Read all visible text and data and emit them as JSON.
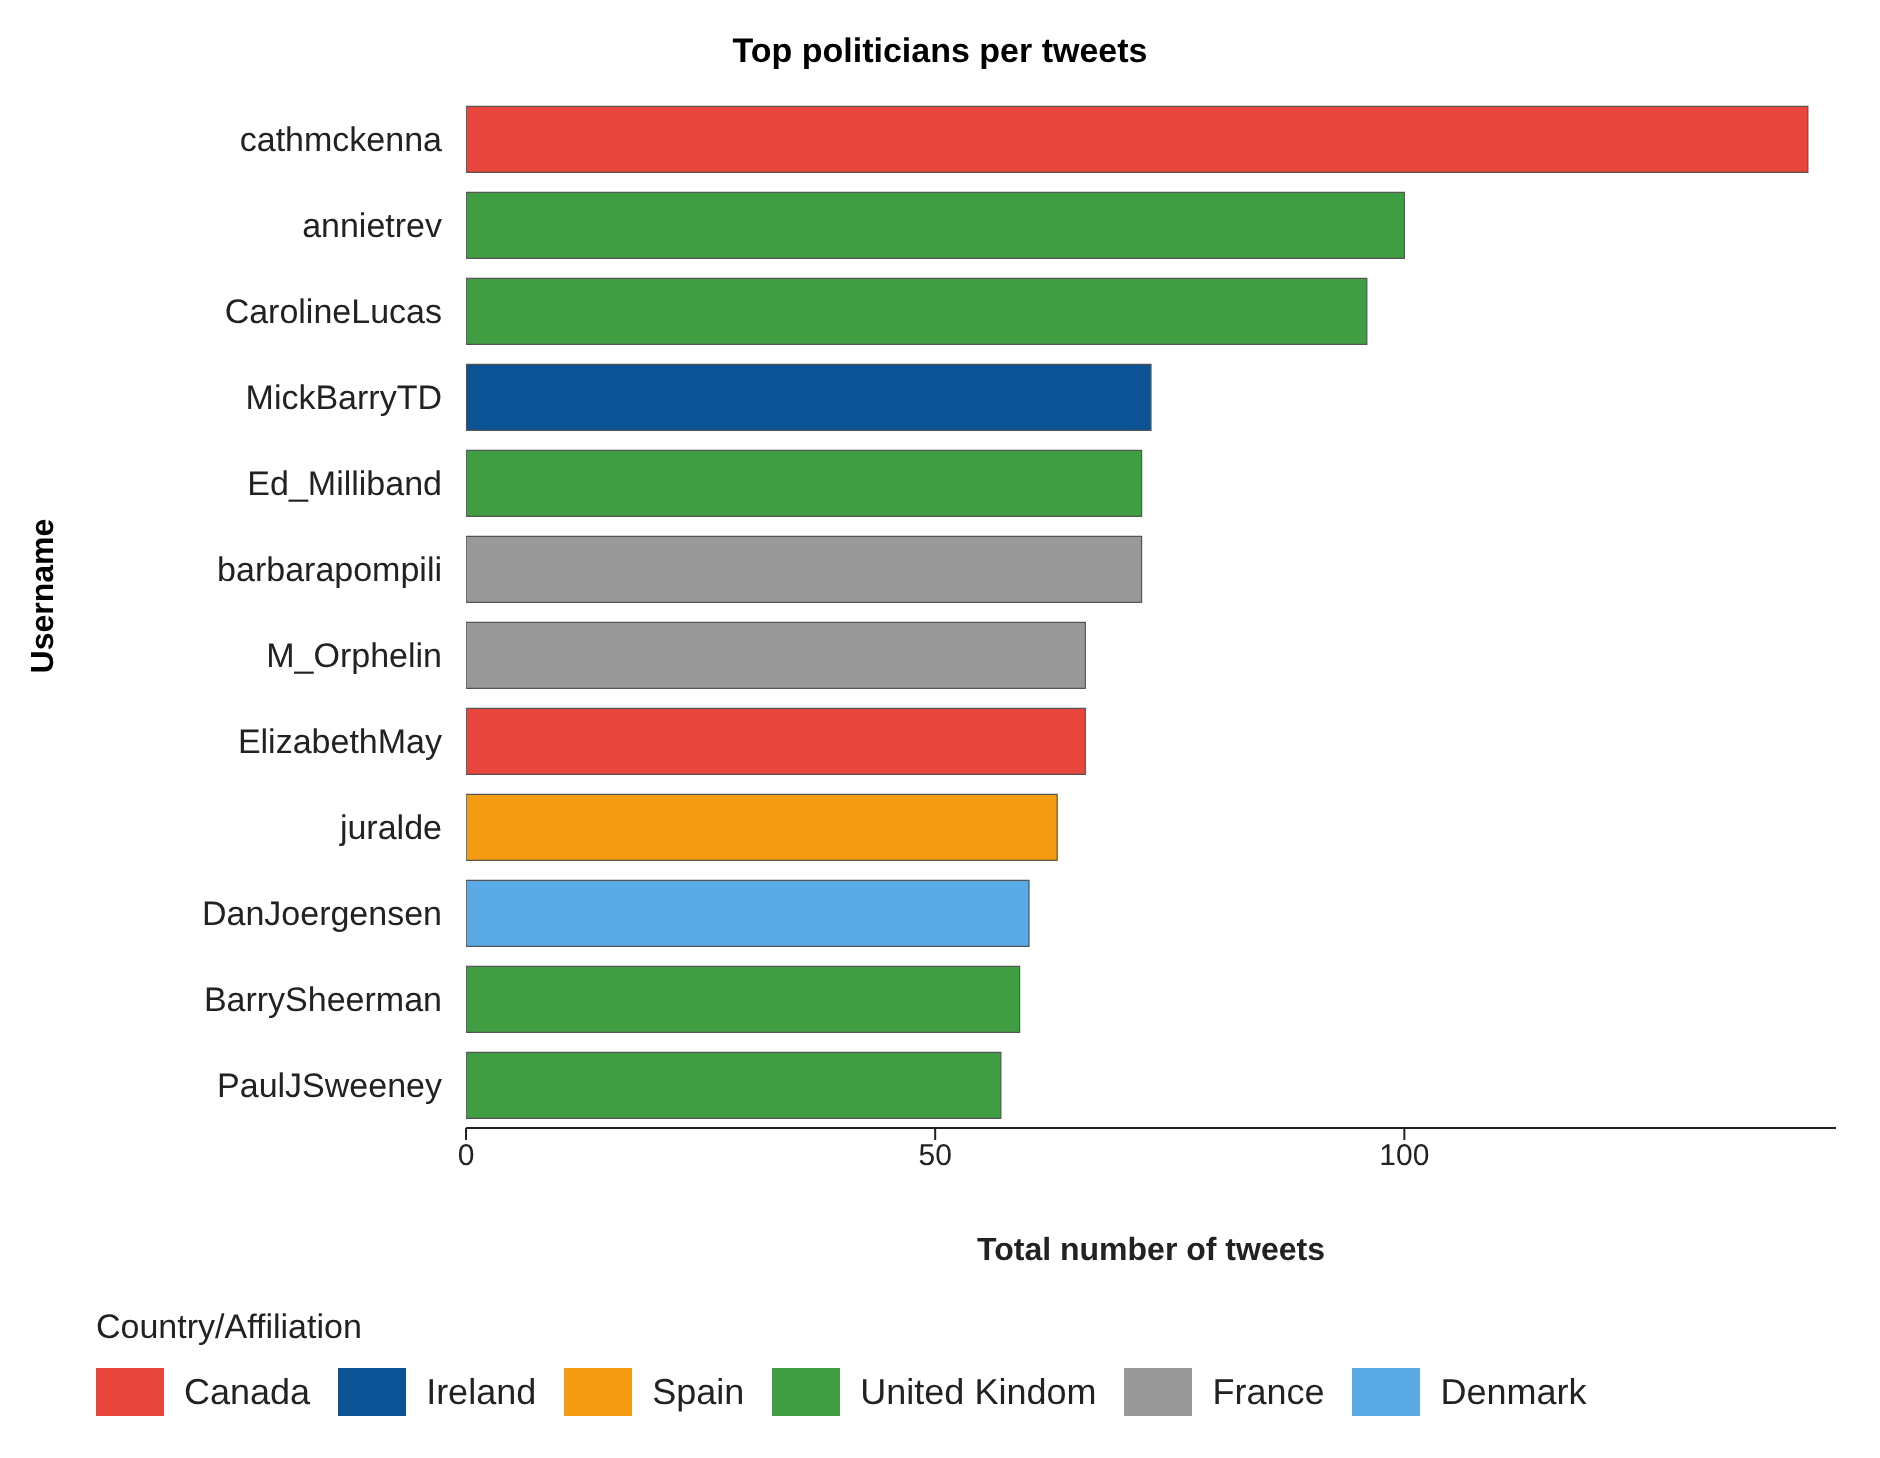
{
  "chart_data": {
    "type": "bar",
    "orientation": "horizontal",
    "stacked": true,
    "title": "Top politicians per tweets",
    "xlabel": "Total number of tweets",
    "ylabel": "Username",
    "legend_title": "Country/Affiliation",
    "legend": "bottom",
    "grid": false,
    "categories": [
      "cathmckenna",
      "annietrev",
      "CarolineLucas",
      "MickBarryTD",
      "Ed_Milliband",
      "barbarapompili",
      "M_Orphelin",
      "ElizabethMay",
      "juralde",
      "DanJoergensen",
      "BarrySheerman",
      "PaulJSweeney"
    ],
    "xlim": [
      0,
      146
    ],
    "xticks": [
      0,
      50,
      100
    ],
    "series": [
      {
        "name": "Canada",
        "color": "#e8453c",
        "values": [
          143,
          null,
          null,
          null,
          null,
          null,
          null,
          66,
          null,
          null,
          null,
          null
        ]
      },
      {
        "name": "Ireland",
        "color": "#0b5394",
        "values": [
          null,
          null,
          null,
          73,
          null,
          null,
          null,
          null,
          null,
          null,
          null,
          null
        ]
      },
      {
        "name": "Spain",
        "color": "#f39c12",
        "values": [
          null,
          null,
          null,
          null,
          null,
          null,
          null,
          null,
          63,
          null,
          null,
          null
        ]
      },
      {
        "name": "United Kindom",
        "color": "#3f9e42",
        "values": [
          null,
          100,
          96,
          null,
          72,
          null,
          null,
          null,
          null,
          null,
          59,
          57
        ]
      },
      {
        "name": "France",
        "color": "#999999",
        "values": [
          null,
          null,
          null,
          null,
          null,
          72,
          66,
          null,
          null,
          null,
          null,
          null
        ]
      },
      {
        "name": "Denmark",
        "color": "#5aaae6",
        "values": [
          null,
          null,
          null,
          null,
          null,
          null,
          null,
          null,
          null,
          60,
          null,
          null
        ]
      }
    ]
  }
}
